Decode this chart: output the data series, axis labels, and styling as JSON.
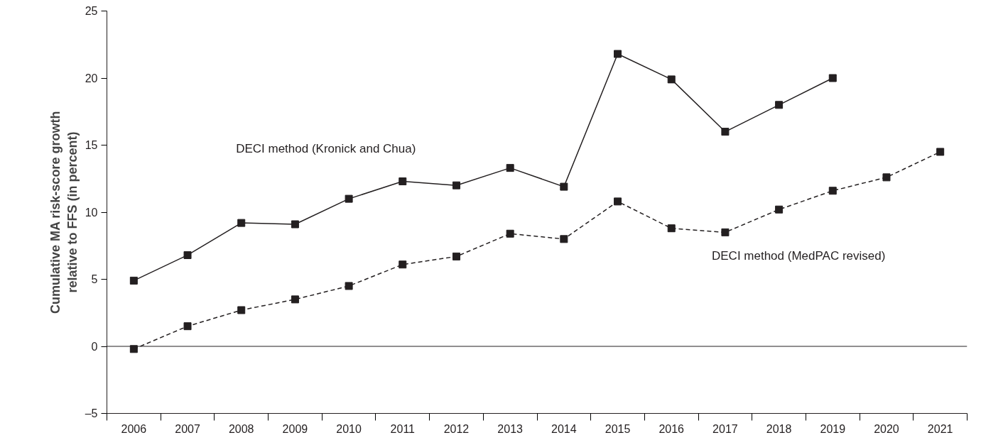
{
  "chart_data": {
    "type": "line",
    "ylabel": "Cumulative MA risk-score growth\nrelative to FFS (in percent)",
    "categories": [
      "2006",
      "2007",
      "2008",
      "2009",
      "2010",
      "2011",
      "2012",
      "2013",
      "2014",
      "2015",
      "2016",
      "2017",
      "2018",
      "2019",
      "2020",
      "2021"
    ],
    "series": [
      {
        "name": "DECI method (Kronick and Chua)",
        "color": "#231f20",
        "line_style": "solid",
        "values": [
          4.9,
          6.8,
          9.2,
          9.1,
          11.0,
          12.3,
          12.0,
          13.3,
          11.9,
          21.8,
          19.9,
          16.0,
          18.0,
          20.0,
          null,
          null
        ]
      },
      {
        "name": "DECI method (MedPAC revised)",
        "color": "#231f20",
        "line_style": "dashed",
        "values": [
          -0.2,
          1.5,
          2.7,
          3.5,
          4.5,
          6.1,
          6.7,
          8.4,
          8.0,
          10.8,
          8.8,
          8.5,
          10.2,
          11.6,
          12.6,
          14.5
        ]
      }
    ],
    "ylim": [
      -5,
      25
    ],
    "yticks": [
      {
        "value": -5,
        "label": "–5"
      },
      0,
      5,
      10,
      15,
      20,
      25
    ],
    "ref_lines": [
      {
        "axis": "y",
        "value": 0,
        "color": "#231f20"
      }
    ],
    "marker": "square",
    "grid": false
  }
}
